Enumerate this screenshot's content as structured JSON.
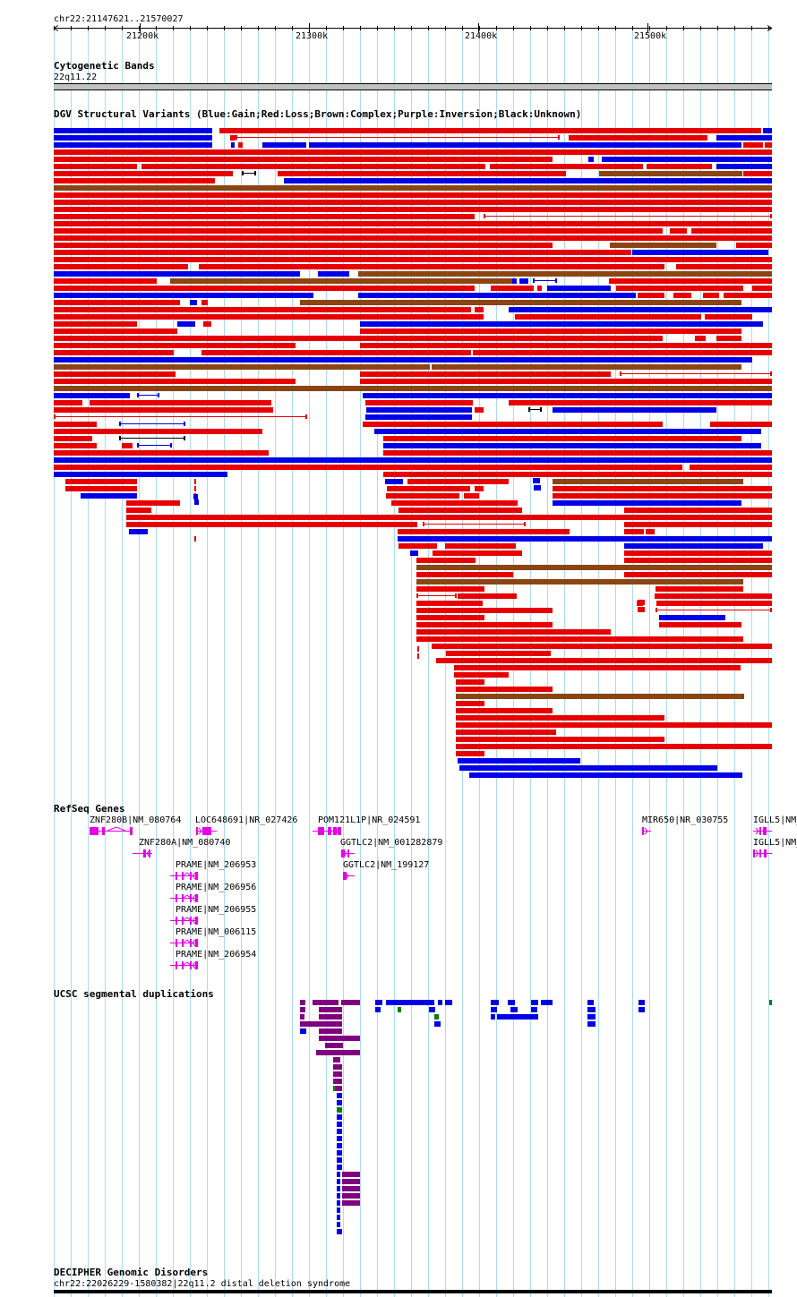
{
  "ruler": {
    "range_label": "chr22:21147621..21570027",
    "start": 21147621,
    "end": 21570027,
    "ticks": [
      "21200k",
      "21300k",
      "21400k",
      "21500k"
    ]
  },
  "tracks": {
    "cytoband": {
      "title": "Cytogenetic Bands",
      "band": "22q11.22"
    },
    "dgv": {
      "title": "DGV Structural Variants (Blue:Gain;Red:Loss;Brown:Complex;Purple:Inversion;Black:Unknown)"
    },
    "refseq": {
      "title": "RefSeq Genes",
      "genes": [
        "ZNF280B|NM_080764",
        "LOC648691|NR_027426",
        "POM121L1P|NR_024591",
        "MIR650|NR_030755",
        "IGLL5|NM_",
        "ZNF280A|NM_080740",
        "GGTLC2|NM_001282879",
        "IGLL5|NM_",
        "PRAME|NM_206953",
        "GGTLC2|NM_199127",
        "PRAME|NM_206956",
        "PRAME|NM_206955",
        "PRAME|NM_006115",
        "PRAME|NM_206954"
      ]
    },
    "segdup": {
      "title": "UCSC segmental duplications"
    },
    "decipher": {
      "title": "DECIPHER Genomic Disorders",
      "feature": "chr22:22026229-1580382|22q11.2 distal deletion syndrome"
    }
  },
  "colors": {
    "gain": "#0000e6",
    "loss": "#e60000",
    "complex": "#8b4513",
    "gene": "#e600e6",
    "grid": "#aadcf0",
    "segdup_purple": "#800080",
    "segdup_green": "#008000"
  }
}
